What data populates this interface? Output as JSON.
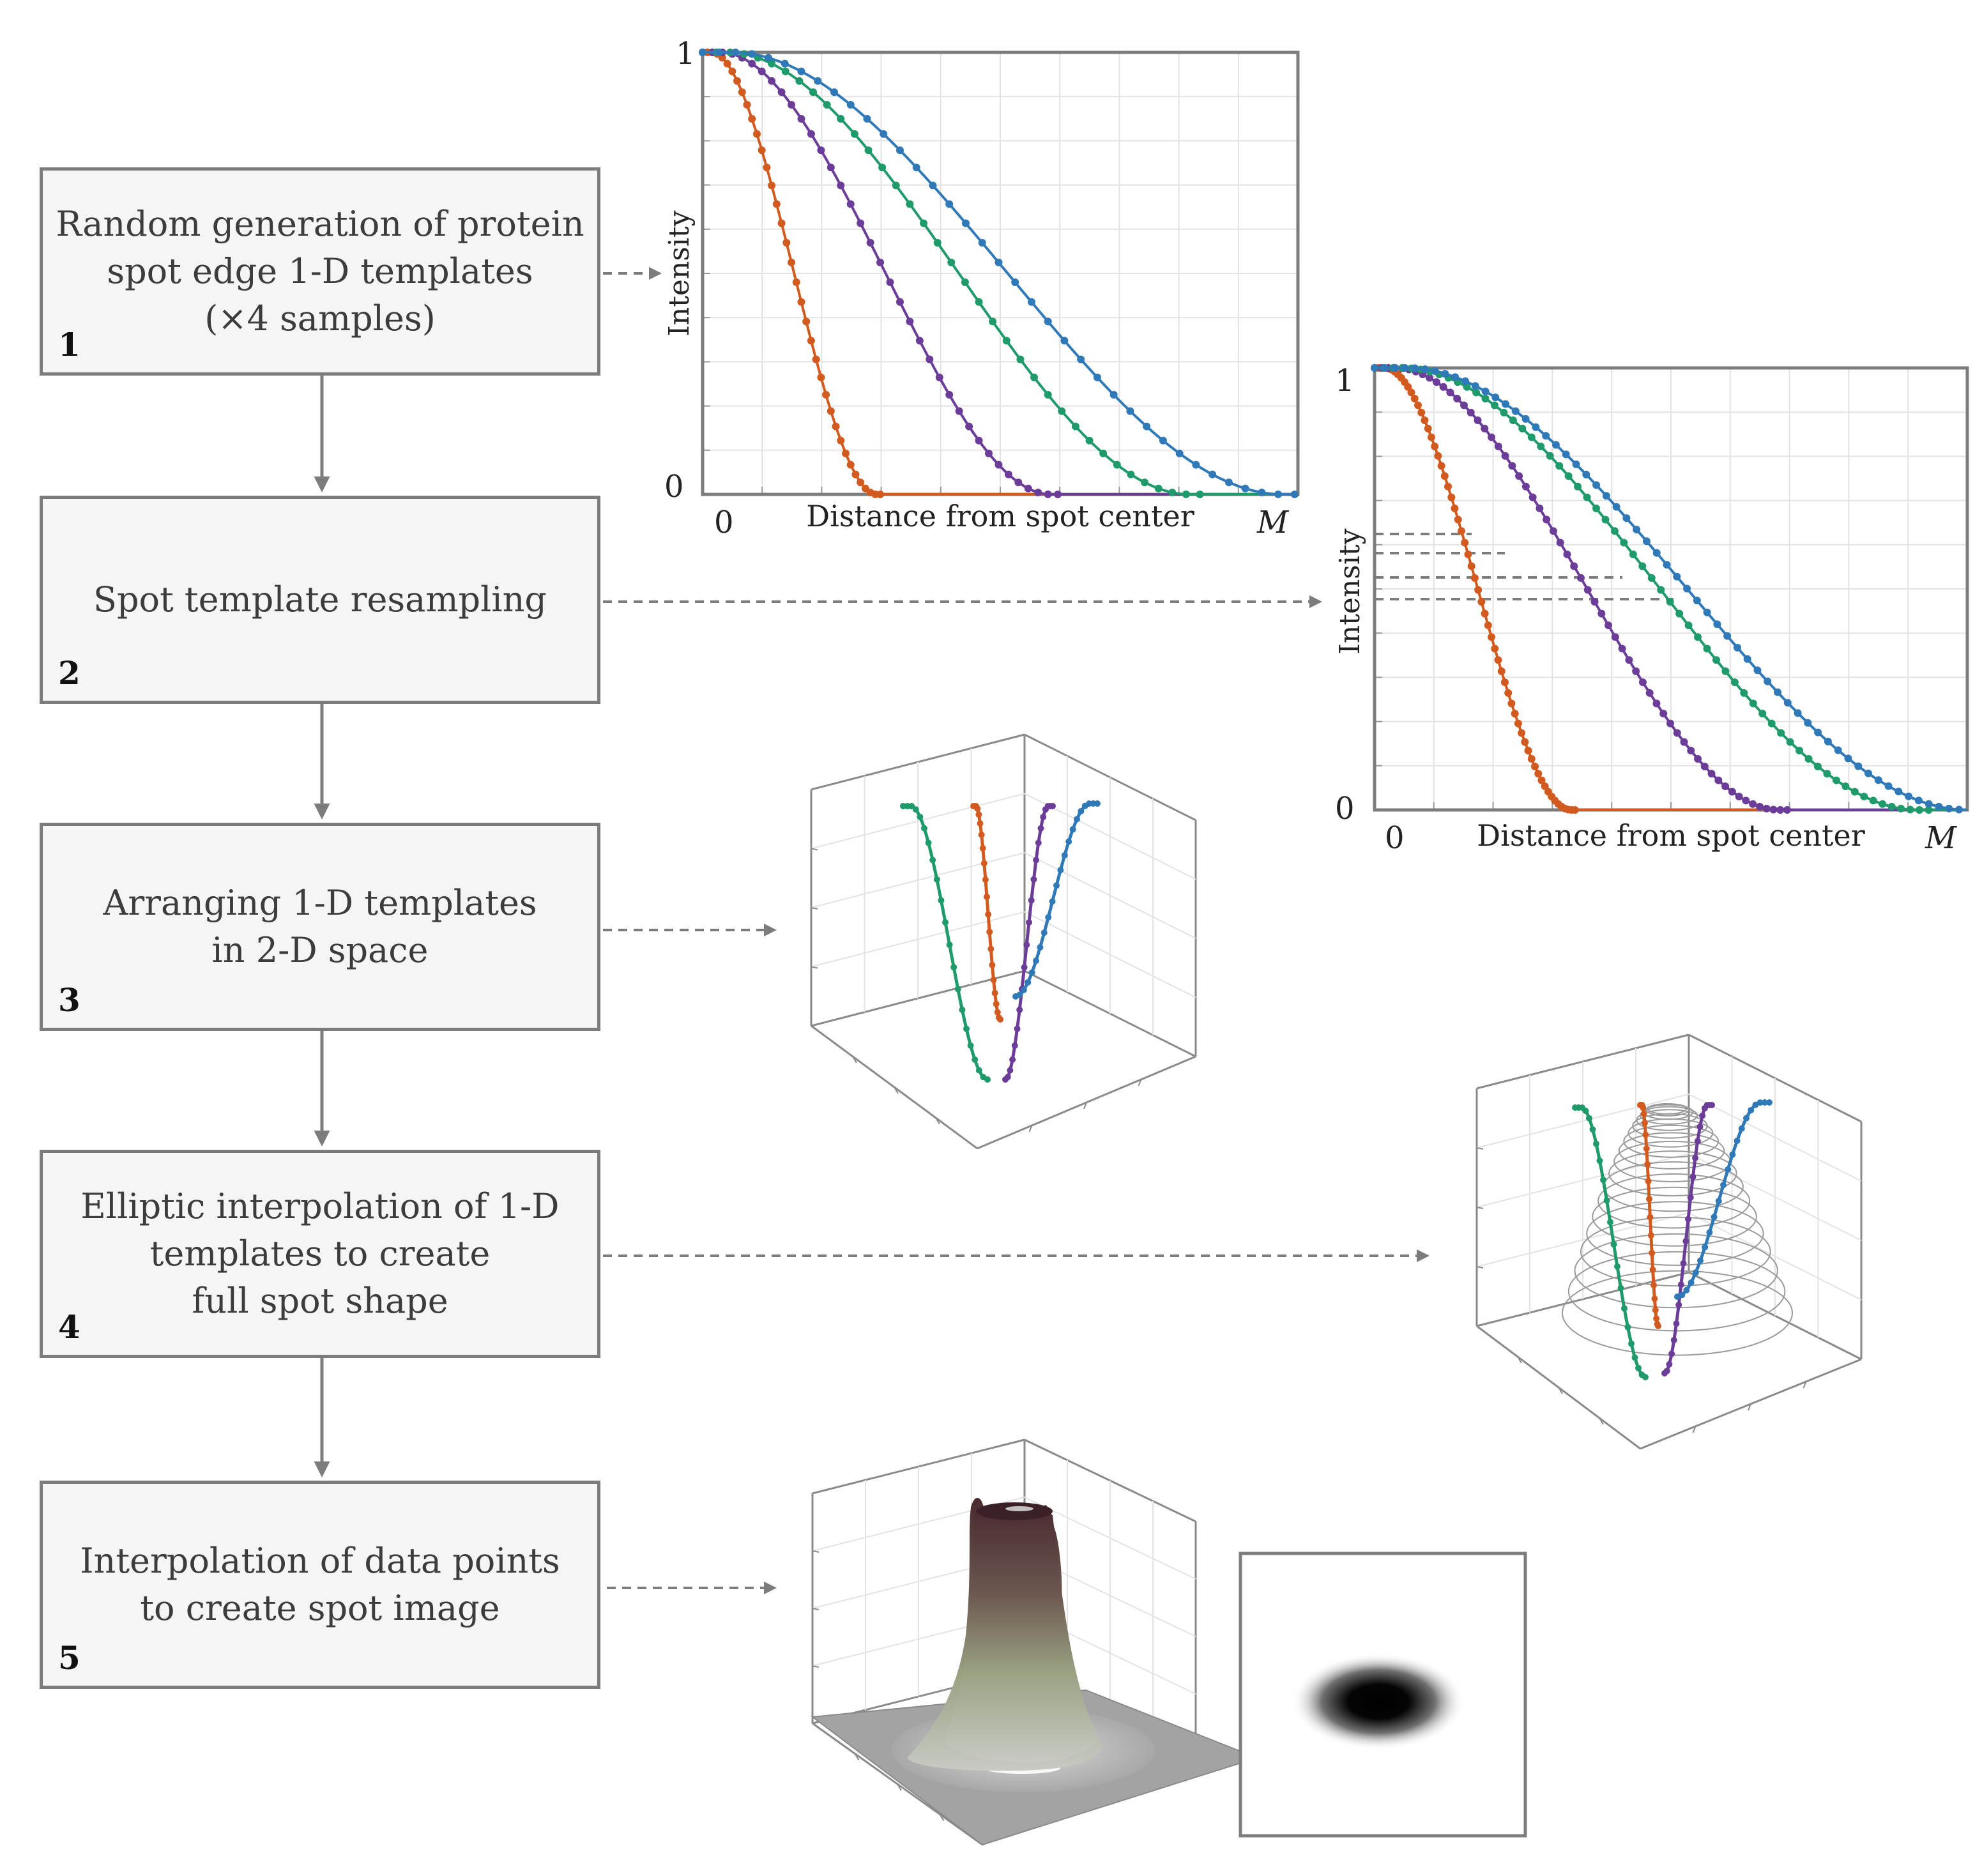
{
  "steps": [
    {
      "number": "1",
      "text": "Random generation of protein\nspot edge 1-D templates\n(×4 samples)"
    },
    {
      "number": "2",
      "text": "Spot template resampling"
    },
    {
      "number": "3",
      "text": "Arranging 1-D templates\nin 2-D space"
    },
    {
      "number": "4",
      "text": "Elliptic interpolation of 1-D\ntemplates to create\nfull spot shape"
    },
    {
      "number": "5",
      "text": "Interpolation of data points\nto create spot image"
    }
  ],
  "colors": {
    "orange": "#d35a1e",
    "purple": "#6b3d98",
    "green": "#1f9a6a",
    "blue": "#2f79b8",
    "box_border": "#7c7c7c",
    "box_fill": "#f5f5f5",
    "arrow": "#7c7c7c"
  },
  "chart_data": [
    {
      "type": "line",
      "title": "",
      "xlabel": "Distance from spot center",
      "ylabel": "Intensity",
      "x_tick_labels": [
        "0",
        "M"
      ],
      "y_tick_labels": [
        "0",
        "1"
      ],
      "ylim": [
        0,
        1
      ],
      "grid": true,
      "series": [
        {
          "color": "orange",
          "half_width": 0.15
        },
        {
          "color": "purple",
          "half_width": 0.3
        },
        {
          "color": "green",
          "half_width": 0.42
        },
        {
          "color": "blue",
          "half_width": 0.5
        }
      ]
    },
    {
      "type": "line",
      "title": "",
      "xlabel": "Distance from spot center",
      "ylabel": "Intensity",
      "x_tick_labels": [
        "0",
        "M"
      ],
      "y_tick_labels": [
        "0",
        "1"
      ],
      "ylim": [
        0,
        1
      ],
      "grid": true,
      "resampled": true,
      "series": [
        {
          "color": "orange",
          "half_width": 0.17
        },
        {
          "color": "purple",
          "half_width": 0.35
        },
        {
          "color": "green",
          "half_width": 0.47
        },
        {
          "color": "blue",
          "half_width": 0.55
        }
      ]
    }
  ]
}
